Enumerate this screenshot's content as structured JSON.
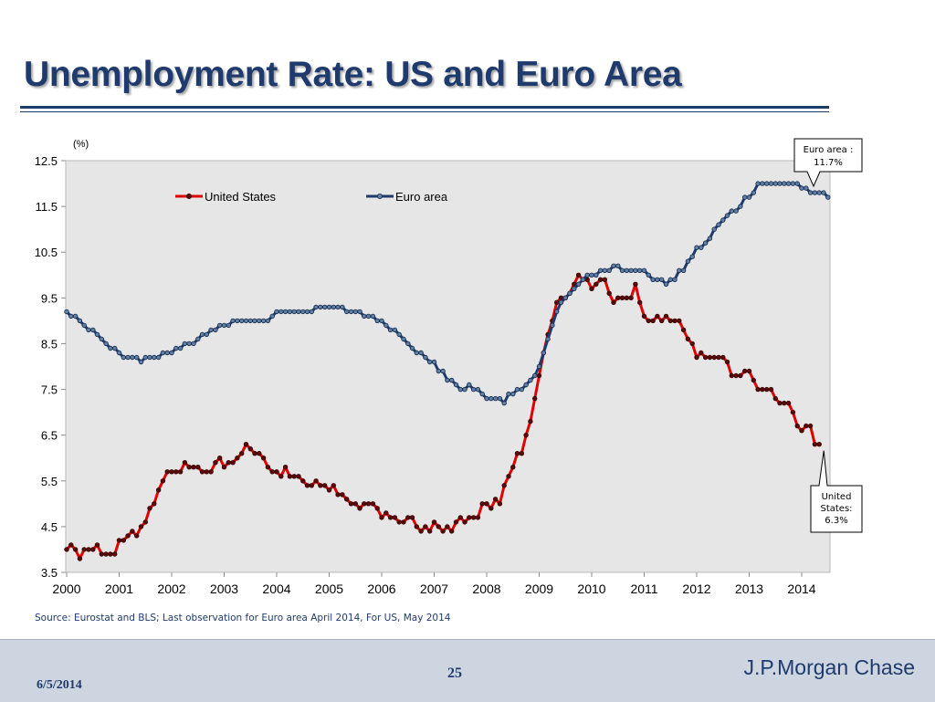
{
  "slide": {
    "title": "Unemployment Rate: US and Euro Area",
    "source": "Source: Eurostat and BLS; Last observation for Euro area April 2014, For US, May 2014"
  },
  "footer": {
    "date": "6/5/2014",
    "page": "25",
    "brand": "J.P.Morgan Chase"
  },
  "colors": {
    "title": "#1f3b6e",
    "us": "#e00000",
    "euro": "#1f3b6e",
    "plot_bg": "#e6e6e6",
    "footer_bg": "#cdd5e0"
  },
  "chart_data": {
    "type": "line",
    "title": "",
    "xlabel": "",
    "ylabel": "(%)",
    "ylim": [
      3.5,
      12.5
    ],
    "yticks": [
      "3.5",
      "4.5",
      "5.5",
      "6.5",
      "7.5",
      "8.5",
      "9.5",
      "10.5",
      "11.5",
      "12.5"
    ],
    "xticks": [
      "2000",
      "2001",
      "2002",
      "2003",
      "2004",
      "2005",
      "2006",
      "2007",
      "2008",
      "2009",
      "2010",
      "2011",
      "2012",
      "2013",
      "2014"
    ],
    "x_start": "2000-01",
    "frequency": "monthly",
    "grid": false,
    "legend": "top",
    "series": [
      {
        "name": "United States",
        "color": "#e00000",
        "values": [
          4.0,
          4.1,
          4.0,
          3.8,
          4.0,
          4.0,
          4.0,
          4.1,
          3.9,
          3.9,
          3.9,
          3.9,
          4.2,
          4.2,
          4.3,
          4.4,
          4.3,
          4.5,
          4.6,
          4.9,
          5.0,
          5.3,
          5.5,
          5.7,
          5.7,
          5.7,
          5.7,
          5.9,
          5.8,
          5.8,
          5.8,
          5.7,
          5.7,
          5.7,
          5.9,
          6.0,
          5.8,
          5.9,
          5.9,
          6.0,
          6.1,
          6.3,
          6.2,
          6.1,
          6.1,
          6.0,
          5.8,
          5.7,
          5.7,
          5.6,
          5.8,
          5.6,
          5.6,
          5.6,
          5.5,
          5.4,
          5.4,
          5.5,
          5.4,
          5.4,
          5.3,
          5.4,
          5.2,
          5.2,
          5.1,
          5.0,
          5.0,
          4.9,
          5.0,
          5.0,
          5.0,
          4.9,
          4.7,
          4.8,
          4.7,
          4.7,
          4.6,
          4.6,
          4.7,
          4.7,
          4.5,
          4.4,
          4.5,
          4.4,
          4.6,
          4.5,
          4.4,
          4.5,
          4.4,
          4.6,
          4.7,
          4.6,
          4.7,
          4.7,
          4.7,
          5.0,
          5.0,
          4.9,
          5.1,
          5.0,
          5.4,
          5.6,
          5.8,
          6.1,
          6.1,
          6.5,
          6.8,
          7.3,
          7.8,
          8.3,
          8.7,
          9.0,
          9.4,
          9.5,
          9.5,
          9.6,
          9.8,
          10.0,
          9.9,
          9.9,
          9.7,
          9.8,
          9.9,
          9.9,
          9.6,
          9.4,
          9.5,
          9.5,
          9.5,
          9.5,
          9.8,
          9.4,
          9.1,
          9.0,
          9.0,
          9.1,
          9.0,
          9.1,
          9.0,
          9.0,
          9.0,
          8.8,
          8.6,
          8.5,
          8.2,
          8.3,
          8.2,
          8.2,
          8.2,
          8.2,
          8.2,
          8.1,
          7.8,
          7.8,
          7.8,
          7.9,
          7.9,
          7.7,
          7.5,
          7.5,
          7.5,
          7.5,
          7.3,
          7.2,
          7.2,
          7.2,
          7.0,
          6.7,
          6.6,
          6.7,
          6.7,
          6.3,
          6.3
        ],
        "callout": "United States: 6.3%"
      },
      {
        "name": "Euro area",
        "color": "#1f3b6e",
        "values": [
          9.2,
          9.1,
          9.1,
          9.0,
          8.9,
          8.8,
          8.8,
          8.7,
          8.6,
          8.5,
          8.4,
          8.4,
          8.3,
          8.2,
          8.2,
          8.2,
          8.2,
          8.1,
          8.2,
          8.2,
          8.2,
          8.2,
          8.3,
          8.3,
          8.3,
          8.4,
          8.4,
          8.5,
          8.5,
          8.5,
          8.6,
          8.7,
          8.7,
          8.8,
          8.8,
          8.9,
          8.9,
          8.9,
          9.0,
          9.0,
          9.0,
          9.0,
          9.0,
          9.0,
          9.0,
          9.0,
          9.0,
          9.1,
          9.2,
          9.2,
          9.2,
          9.2,
          9.2,
          9.2,
          9.2,
          9.2,
          9.2,
          9.3,
          9.3,
          9.3,
          9.3,
          9.3,
          9.3,
          9.3,
          9.2,
          9.2,
          9.2,
          9.2,
          9.1,
          9.1,
          9.1,
          9.0,
          9.0,
          8.9,
          8.8,
          8.8,
          8.7,
          8.6,
          8.5,
          8.4,
          8.3,
          8.3,
          8.2,
          8.1,
          8.1,
          7.9,
          7.9,
          7.7,
          7.7,
          7.6,
          7.5,
          7.5,
          7.6,
          7.5,
          7.5,
          7.4,
          7.3,
          7.3,
          7.3,
          7.3,
          7.2,
          7.4,
          7.4,
          7.5,
          7.5,
          7.6,
          7.7,
          7.8,
          8.0,
          8.3,
          8.6,
          8.9,
          9.2,
          9.4,
          9.5,
          9.6,
          9.7,
          9.8,
          9.9,
          10.0,
          10.0,
          10.0,
          10.1,
          10.1,
          10.1,
          10.2,
          10.2,
          10.1,
          10.1,
          10.1,
          10.1,
          10.1,
          10.1,
          10.0,
          9.9,
          9.9,
          9.9,
          9.8,
          9.9,
          9.9,
          10.1,
          10.1,
          10.3,
          10.4,
          10.6,
          10.6,
          10.7,
          10.8,
          11.0,
          11.1,
          11.2,
          11.3,
          11.4,
          11.4,
          11.5,
          11.7,
          11.7,
          11.8,
          12.0,
          12.0,
          12.0,
          12.0,
          12.0,
          12.0,
          12.0,
          12.0,
          12.0,
          12.0,
          11.9,
          11.9,
          11.8,
          11.8,
          11.8,
          11.8,
          11.7
        ],
        "callout": "Euro area : 11.7%"
      }
    ]
  }
}
